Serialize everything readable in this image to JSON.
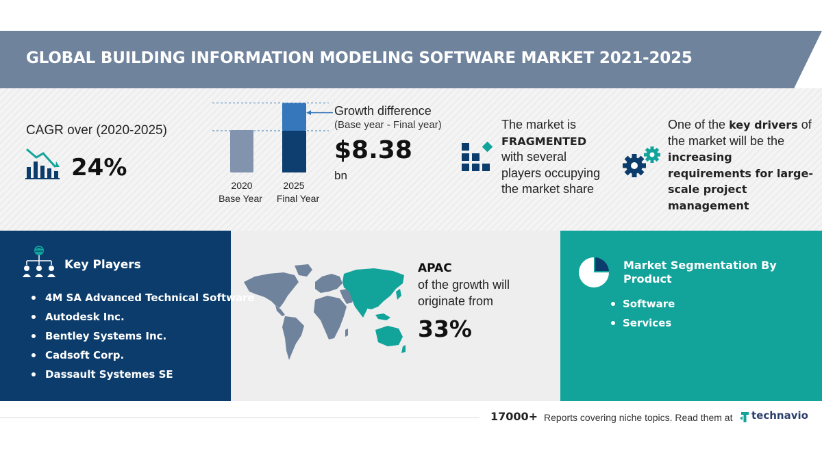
{
  "header": {
    "title": "GLOBAL BUILDING INFORMATION MODELING SOFTWARE MARKET 2021-2025"
  },
  "cagr": {
    "label": "CAGR over (2020-2025)",
    "value": "24%",
    "icon": "bar-chart-trend-icon"
  },
  "chart_data": {
    "type": "bar",
    "categories": [
      "2020\nBase Year",
      "2025\nFinal Year"
    ],
    "tick_labels": [
      {
        "year": "2020",
        "caption": "Base Year"
      },
      {
        "year": "2025",
        "caption": "Final Year"
      }
    ],
    "base_value": 1,
    "final_value": 1.64,
    "growth_fraction_of_final": 0.4
  },
  "growth": {
    "title": "Growth difference",
    "subtitle": "(Base year - Final year)",
    "value": "$8.38",
    "unit": "bn"
  },
  "market": {
    "line1": "The market is",
    "emphasis": "FRAGMENTED",
    "line2": "with several",
    "line3": "players occupying",
    "line4": "the market share",
    "icon": "fragmented-blocks-icon"
  },
  "drivers": {
    "prefix": "One of the",
    "emphasis1": "key drivers",
    "middle": "of the market will be the",
    "emphasis2": "increasing requirements for large-scale project management",
    "icon": "gears-icon"
  },
  "key_players": {
    "title": "Key Players",
    "icon": "people-network-icon",
    "items": [
      "4M SA Advanced Technical Software",
      "Autodesk Inc.",
      "Bentley Systems Inc.",
      "Cadsoft Corp.",
      "Dassault Systemes SE"
    ]
  },
  "region": {
    "name": "APAC",
    "line1": "of the growth will",
    "line2": "originate from",
    "value": "33%",
    "icon": "world-map-icon"
  },
  "segmentation": {
    "title": "Market Segmentation By Product",
    "icon": "pie-chart-icon",
    "items": [
      "Software",
      "Services"
    ]
  },
  "footer": {
    "count": "17000+",
    "text": "Reports covering niche topics. Read them at",
    "brand": "technavio"
  },
  "colors": {
    "banner": "#6f839d",
    "navy": "#0b3c6b",
    "teal": "#12a39b",
    "bar_base": "#8193ad",
    "bar_final_top": "#3577ba",
    "bar_final_bottom": "#0e3e6f"
  }
}
